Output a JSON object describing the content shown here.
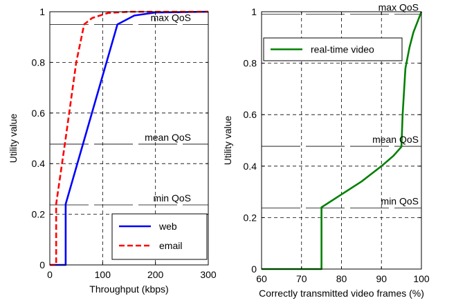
{
  "chart_data": [
    {
      "type": "line",
      "xlabel": "Throughput (kbps)",
      "ylabel": "Utility value",
      "xlim": [
        0,
        300
      ],
      "ylim": [
        0,
        1
      ],
      "xticks": [
        "0",
        "100",
        "200",
        "300"
      ],
      "yticks": [
        "0",
        "0.2",
        "0.4",
        "0.6",
        "0.8",
        "1"
      ],
      "xtick_values": [
        0,
        100,
        200,
        300
      ],
      "ytick_values": [
        0,
        0.2,
        0.4,
        0.6,
        0.8,
        1
      ],
      "grid": true,
      "legend_position": "bottom-right",
      "series": [
        {
          "name": "web",
          "color": "#0000ff",
          "style": "solid",
          "x": [
            0,
            30,
            30,
            128,
            160,
            200,
            300
          ],
          "y": [
            0,
            0,
            0.24,
            0.95,
            0.985,
            0.997,
            1.0
          ]
        },
        {
          "name": "email",
          "color": "#ff0000",
          "style": "dashed",
          "x": [
            0,
            12,
            12,
            30,
            50,
            65,
            80,
            110,
            150,
            300
          ],
          "y": [
            0,
            0,
            0.24,
            0.5,
            0.8,
            0.95,
            0.975,
            0.995,
            1.0,
            1.0
          ]
        }
      ],
      "annotations": [
        {
          "label": "max QoS",
          "y": 0.95
        },
        {
          "label": "mean QoS",
          "y": 0.477
        },
        {
          "label": "min QoS",
          "y": 0.237
        }
      ]
    },
    {
      "type": "line",
      "xlabel": "Correctly transmitted video frames (%)",
      "ylabel": "Utility value",
      "xlim": [
        60,
        100
      ],
      "ylim": [
        0,
        1
      ],
      "xticks": [
        "60",
        "70",
        "80",
        "90",
        "100"
      ],
      "yticks": [
        "0",
        "0.2",
        "0.4",
        "0.6",
        "0.8",
        "1"
      ],
      "xtick_values": [
        60,
        70,
        80,
        90,
        100
      ],
      "ytick_values": [
        0,
        0.2,
        0.4,
        0.6,
        0.8,
        1
      ],
      "grid": true,
      "legend_position": "top-left",
      "series": [
        {
          "name": "real-time video",
          "color": "#008000",
          "style": "solid",
          "x": [
            60,
            75,
            75,
            80,
            85,
            90,
            93,
            95,
            95.3,
            96,
            97,
            98,
            99,
            100
          ],
          "y": [
            0,
            0,
            0.24,
            0.29,
            0.34,
            0.4,
            0.44,
            0.475,
            0.6,
            0.78,
            0.86,
            0.92,
            0.96,
            1.0
          ]
        }
      ],
      "annotations": [
        {
          "label": "max QoS",
          "y": 0.99
        },
        {
          "label": "mean QoS",
          "y": 0.477
        },
        {
          "label": "min QoS",
          "y": 0.237
        }
      ]
    }
  ]
}
